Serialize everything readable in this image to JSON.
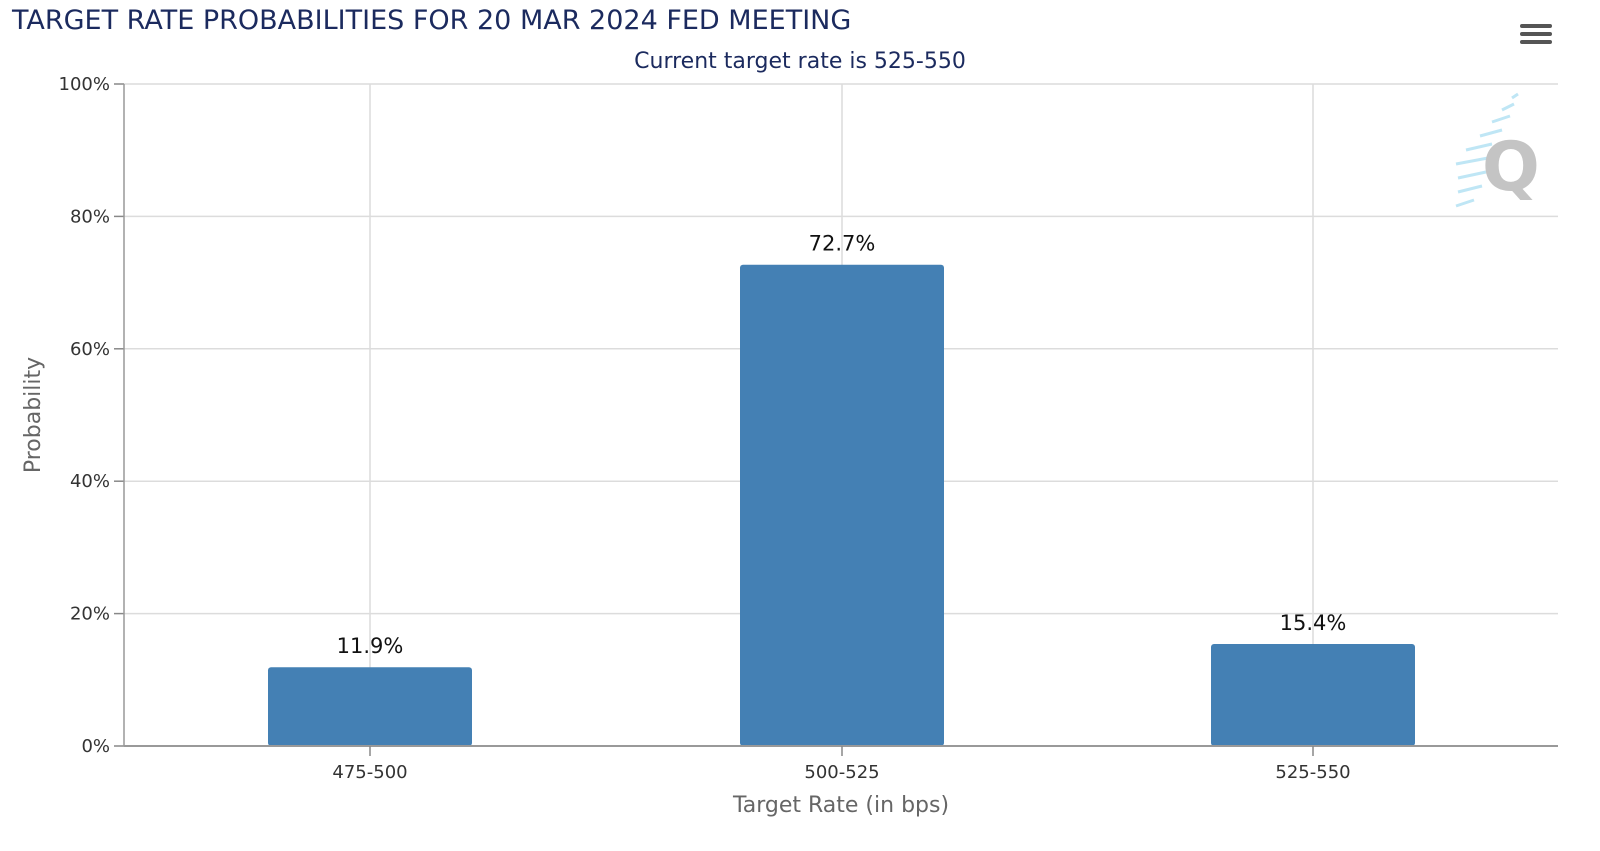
{
  "header": {
    "title": "TARGET RATE PROBABILITIES FOR 20 MAR 2024 FED MEETING",
    "subtitle": "Current target rate is 525-550"
  },
  "menu": {
    "icon": "hamburger-menu-icon"
  },
  "watermark": {
    "icon": "quikstrike-q-logo",
    "text": "Q"
  },
  "colors": {
    "bar": "#4480b4",
    "title": "#1b2a5e",
    "grid": "#dcdcdc"
  },
  "chart_data": {
    "type": "bar",
    "categories": [
      "475-500",
      "500-525",
      "525-550"
    ],
    "values": [
      11.9,
      72.7,
      15.4
    ],
    "data_labels": [
      "11.9%",
      "72.7%",
      "15.4%"
    ],
    "xlabel": "Target Rate (in bps)",
    "ylabel": "Probability",
    "ylim": [
      0,
      100
    ],
    "yticks": [
      "0%",
      "20%",
      "40%",
      "60%",
      "80%",
      "100%"
    ],
    "grid": true
  }
}
